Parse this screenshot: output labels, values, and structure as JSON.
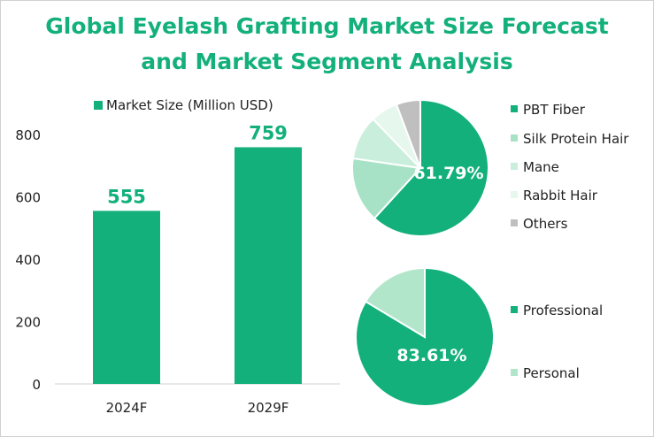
{
  "title": {
    "line1": "Global Eyelash Grafting Market Size Forecast",
    "line2": "and Market Segment Analysis"
  },
  "colors": {
    "primary": "#13b07c",
    "silk": "#a8e2c6",
    "mane": "#c9efdc",
    "rabbit": "#e6f7ee",
    "others": "#bfbfbf",
    "personal": "#b2e6cb"
  },
  "chart_data": [
    {
      "type": "bar",
      "legend": "Market Size (Million USD)",
      "categories": [
        "2024F",
        "2029F"
      ],
      "values": [
        555,
        759
      ],
      "data_labels": [
        "555",
        "759"
      ],
      "ylim": [
        0,
        800
      ],
      "yticks": [
        "0",
        "200",
        "400",
        "600",
        "800"
      ],
      "grid": false,
      "legend_position": "top"
    },
    {
      "type": "pie",
      "labels": [
        "PBT Fiber",
        "Silk Protein Hair",
        "Mane",
        "Rabbit Hair",
        "Others"
      ],
      "values": [
        61.79,
        15.5,
        10.5,
        6.5,
        5.71
      ],
      "shown_label": "61.79%",
      "legend_position": "right"
    },
    {
      "type": "pie",
      "labels": [
        "Professional",
        "Personal"
      ],
      "values": [
        83.61,
        16.39
      ],
      "shown_label": "83.61%",
      "legend_position": "right"
    }
  ]
}
